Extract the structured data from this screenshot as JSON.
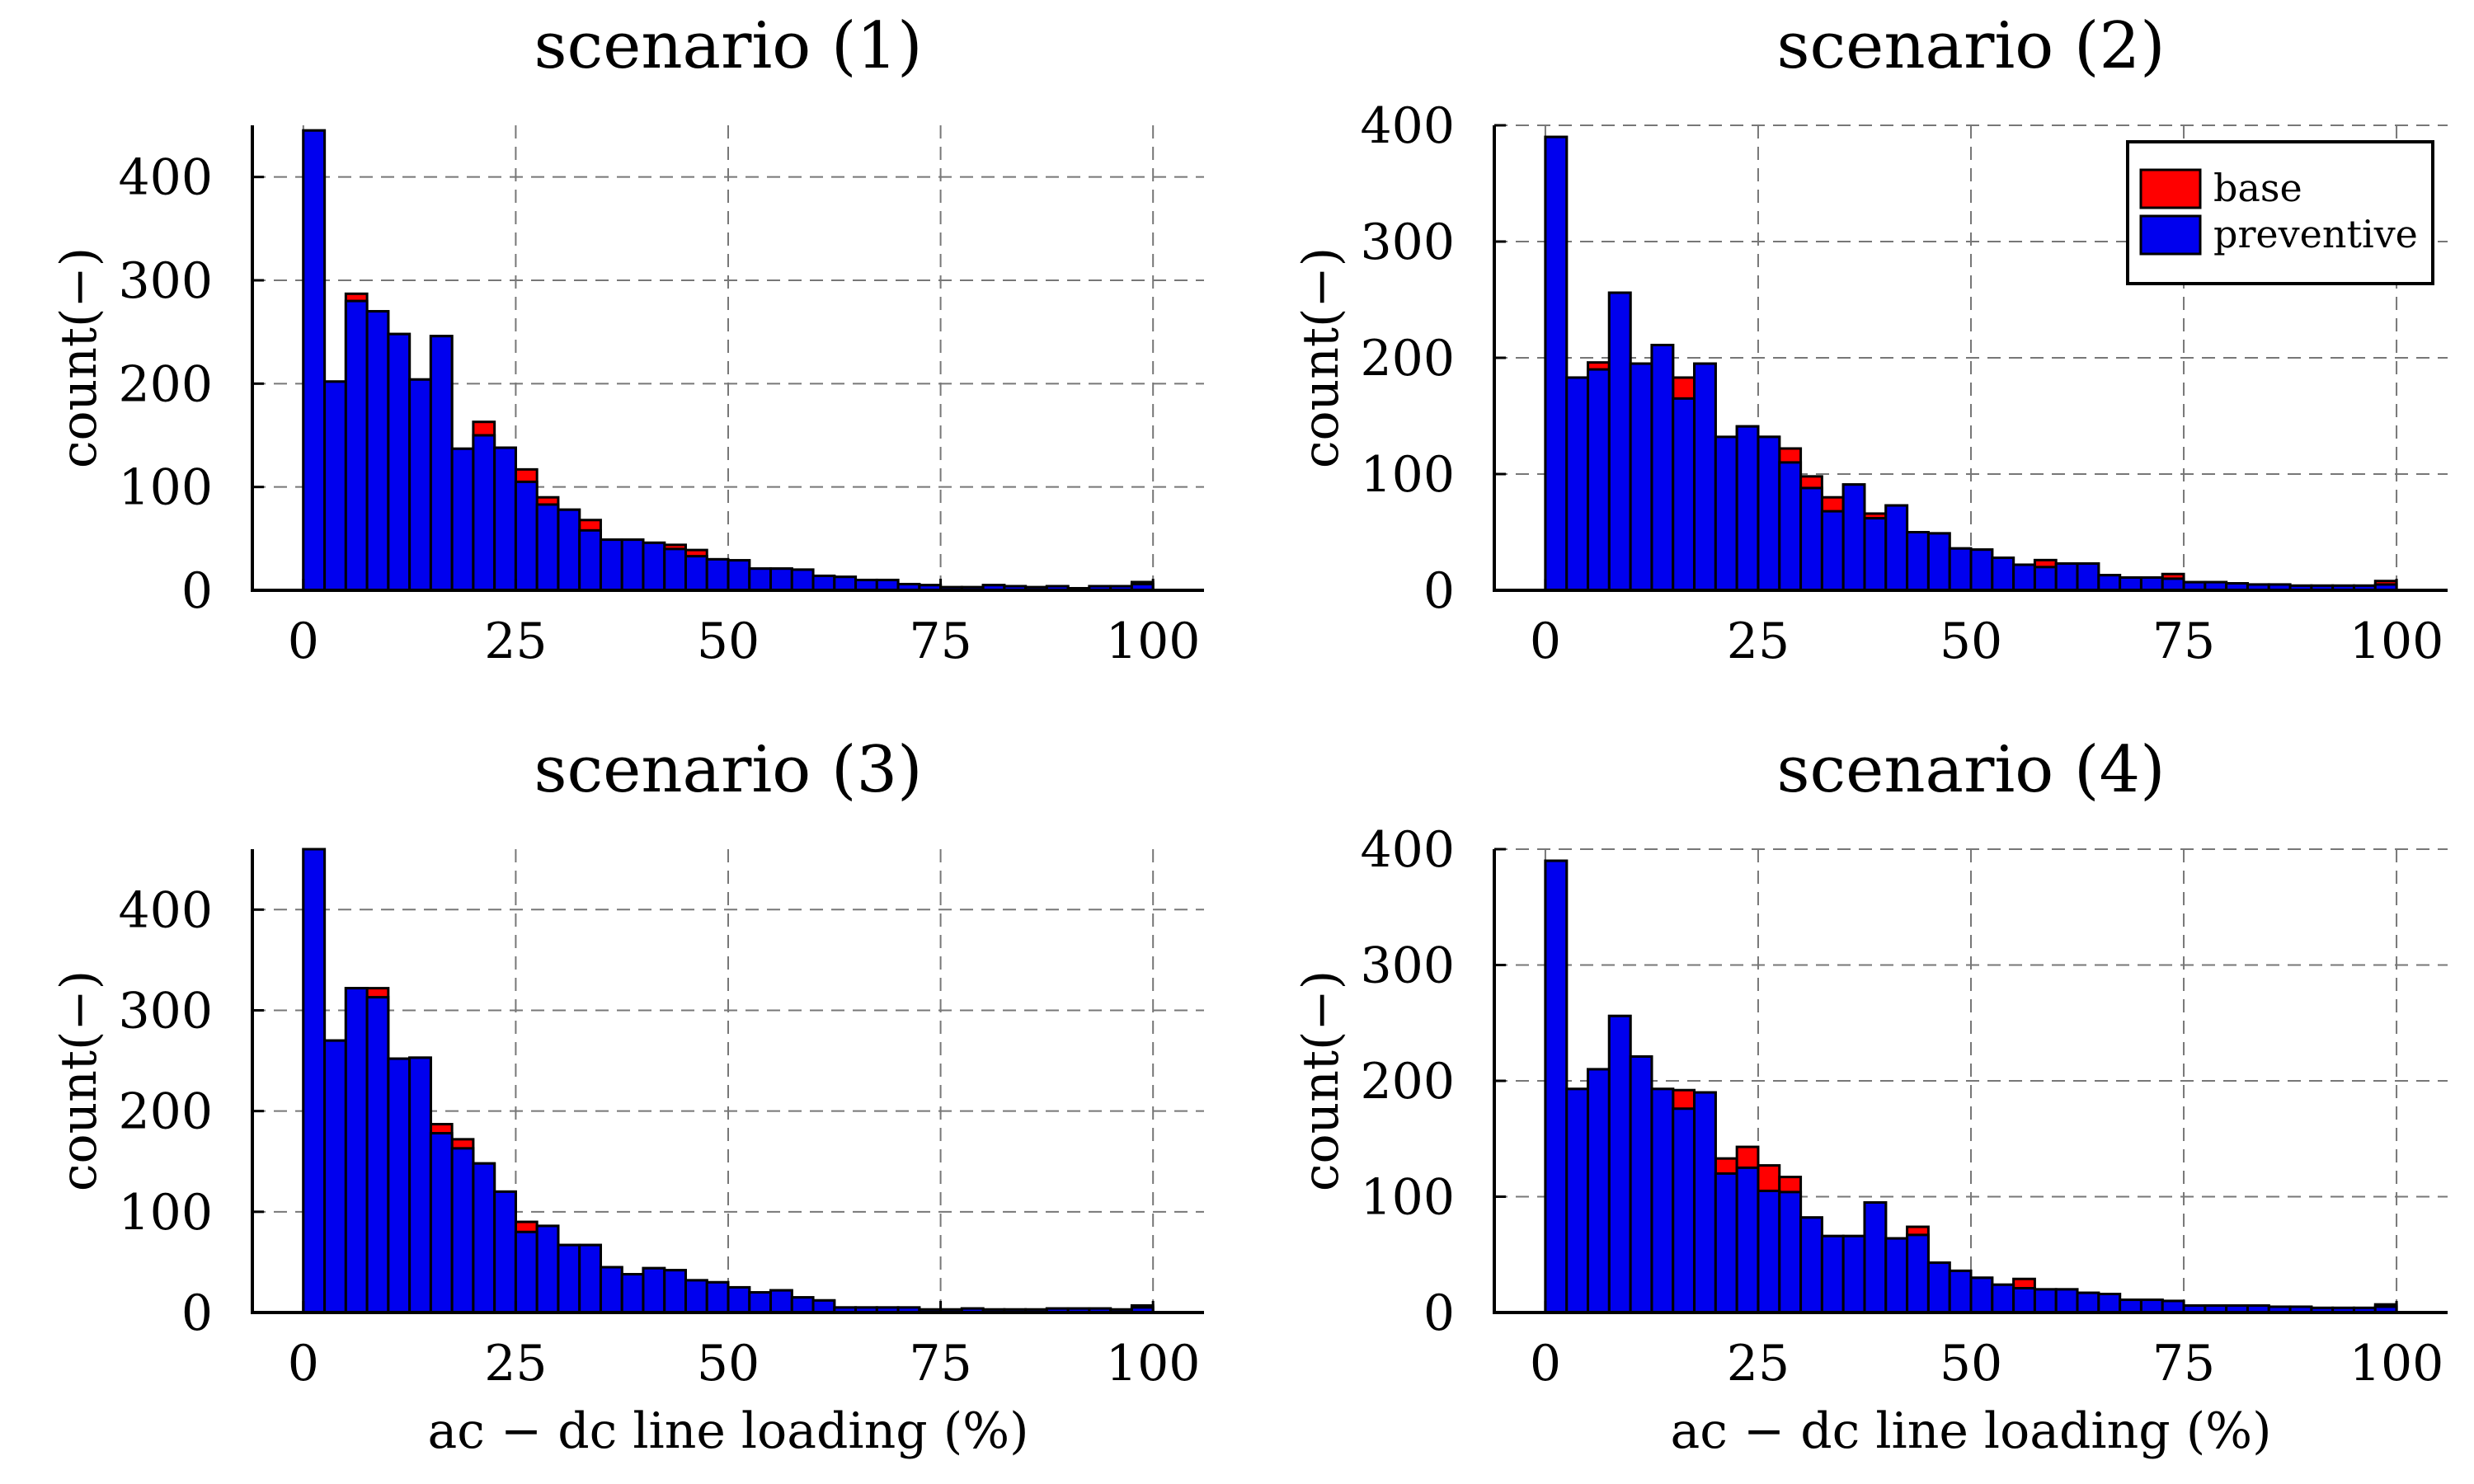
{
  "chart_data": [
    {
      "type": "bar",
      "title": "scenario (1)",
      "xlabel": "",
      "ylabel": "count(−)",
      "xlim": [
        -6,
        106
      ],
      "ylim": [
        0,
        450
      ],
      "xticks": [
        0,
        25,
        50,
        75,
        100
      ],
      "yticks": [
        0,
        100,
        200,
        300,
        400
      ],
      "grid": true,
      "legend": null,
      "bin_width": 2.5,
      "x": [
        1.25,
        3.75,
        6.25,
        8.75,
        11.25,
        13.75,
        16.25,
        18.75,
        21.25,
        23.75,
        26.25,
        28.75,
        31.25,
        33.75,
        36.25,
        38.75,
        41.25,
        43.75,
        46.25,
        48.75,
        51.25,
        53.75,
        56.25,
        58.75,
        61.25,
        63.75,
        66.25,
        68.75,
        71.25,
        73.75,
        76.25,
        78.75,
        81.25,
        83.75,
        86.25,
        88.75,
        91.25,
        93.75,
        96.25,
        98.75
      ],
      "series": [
        {
          "name": "base",
          "color": "#ff0000",
          "values": [
            445,
            202,
            287,
            270,
            248,
            204,
            246,
            137,
            163,
            138,
            117,
            90,
            78,
            68,
            49,
            49,
            46,
            44,
            39,
            30,
            29,
            21,
            21,
            20,
            14,
            13,
            10,
            10,
            6,
            5,
            3,
            3,
            5,
            4,
            3,
            4,
            2,
            4,
            4,
            8
          ]
        },
        {
          "name": "preventive",
          "color": "#0000ee",
          "values": [
            445,
            202,
            280,
            270,
            248,
            204,
            246,
            137,
            150,
            138,
            105,
            83,
            78,
            58,
            49,
            49,
            46,
            40,
            33,
            30,
            29,
            21,
            21,
            20,
            14,
            13,
            10,
            10,
            6,
            5,
            3,
            3,
            5,
            4,
            3,
            4,
            2,
            4,
            4,
            6
          ]
        }
      ]
    },
    {
      "type": "bar",
      "title": "scenario (2)",
      "xlabel": "",
      "ylabel": "count(−)",
      "xlim": [
        -6,
        106
      ],
      "ylim": [
        0,
        400
      ],
      "xticks": [
        0,
        25,
        50,
        75,
        100
      ],
      "yticks": [
        0,
        100,
        200,
        300,
        400
      ],
      "grid": true,
      "legend": {
        "position": "top-right",
        "entries": [
          "base",
          "preventive"
        ]
      },
      "bin_width": 2.5,
      "x": [
        1.25,
        3.75,
        6.25,
        8.75,
        11.25,
        13.75,
        16.25,
        18.75,
        21.25,
        23.75,
        26.25,
        28.75,
        31.25,
        33.75,
        36.25,
        38.75,
        41.25,
        43.75,
        46.25,
        48.75,
        51.25,
        53.75,
        56.25,
        58.75,
        61.25,
        63.75,
        66.25,
        68.75,
        71.25,
        73.75,
        76.25,
        78.75,
        81.25,
        83.75,
        86.25,
        88.75,
        91.25,
        93.75,
        96.25,
        98.75
      ],
      "series": [
        {
          "name": "base",
          "color": "#ff0000",
          "values": [
            390,
            183,
            196,
            256,
            195,
            211,
            183,
            195,
            126,
            141,
            132,
            122,
            98,
            80,
            91,
            66,
            73,
            50,
            49,
            36,
            35,
            28,
            22,
            26,
            23,
            23,
            13,
            11,
            11,
            14,
            7,
            7,
            6,
            5,
            5,
            4,
            4,
            4,
            4,
            8
          ]
        },
        {
          "name": "preventive",
          "color": "#0000ee",
          "values": [
            390,
            183,
            190,
            256,
            195,
            211,
            165,
            195,
            132,
            141,
            132,
            110,
            88,
            68,
            91,
            62,
            73,
            50,
            49,
            36,
            35,
            28,
            22,
            20,
            23,
            23,
            13,
            11,
            11,
            10,
            7,
            7,
            6,
            5,
            5,
            4,
            4,
            4,
            4,
            5
          ]
        }
      ]
    },
    {
      "type": "bar",
      "title": "scenario (3)",
      "xlabel": "ac − dc line loading (%)",
      "ylabel": "count(−)",
      "xlim": [
        -6,
        106
      ],
      "ylim": [
        0,
        460
      ],
      "xticks": [
        0,
        25,
        50,
        75,
        100
      ],
      "yticks": [
        0,
        100,
        200,
        300,
        400
      ],
      "grid": true,
      "legend": null,
      "bin_width": 2.5,
      "x": [
        1.25,
        3.75,
        6.25,
        8.75,
        11.25,
        13.75,
        16.25,
        18.75,
        21.25,
        23.75,
        26.25,
        28.75,
        31.25,
        33.75,
        36.25,
        38.75,
        41.25,
        43.75,
        46.25,
        48.75,
        51.25,
        53.75,
        56.25,
        58.75,
        61.25,
        63.75,
        66.25,
        68.75,
        71.25,
        73.75,
        76.25,
        78.75,
        81.25,
        83.75,
        86.25,
        88.75,
        91.25,
        93.75,
        96.25,
        98.75
      ],
      "series": [
        {
          "name": "base",
          "color": "#ff0000",
          "values": [
            460,
            270,
            322,
            322,
            252,
            253,
            187,
            172,
            148,
            120,
            90,
            86,
            67,
            67,
            45,
            38,
            44,
            42,
            32,
            30,
            25,
            20,
            22,
            15,
            12,
            5,
            5,
            5,
            5,
            3,
            3,
            4,
            3,
            3,
            3,
            4,
            4,
            4,
            3,
            7
          ]
        },
        {
          "name": "preventive",
          "color": "#0000ee",
          "values": [
            460,
            270,
            322,
            313,
            252,
            253,
            178,
            163,
            148,
            120,
            80,
            86,
            67,
            67,
            45,
            38,
            44,
            42,
            32,
            30,
            25,
            20,
            22,
            15,
            12,
            5,
            5,
            5,
            5,
            3,
            3,
            4,
            3,
            3,
            3,
            4,
            4,
            4,
            3,
            5
          ]
        }
      ]
    },
    {
      "type": "bar",
      "title": "scenario (4)",
      "xlabel": "ac − dc line loading (%)",
      "ylabel": "count(−)",
      "xlim": [
        -6,
        106
      ],
      "ylim": [
        0,
        400
      ],
      "xticks": [
        0,
        25,
        50,
        75,
        100
      ],
      "yticks": [
        0,
        100,
        200,
        300,
        400
      ],
      "grid": true,
      "legend": null,
      "bin_width": 2.5,
      "x": [
        1.25,
        3.75,
        6.25,
        8.75,
        11.25,
        13.75,
        16.25,
        18.75,
        21.25,
        23.75,
        26.25,
        28.75,
        31.25,
        33.75,
        36.25,
        38.75,
        41.25,
        43.75,
        46.25,
        48.75,
        51.25,
        53.75,
        56.25,
        58.75,
        61.25,
        63.75,
        66.25,
        68.75,
        71.25,
        73.75,
        76.25,
        78.75,
        81.25,
        83.75,
        86.25,
        88.75,
        91.25,
        93.75,
        96.25,
        98.75
      ],
      "series": [
        {
          "name": "base",
          "color": "#ff0000",
          "values": [
            390,
            193,
            210,
            256,
            221,
            193,
            192,
            190,
            133,
            143,
            127,
            117,
            82,
            66,
            66,
            95,
            64,
            74,
            43,
            36,
            30,
            24,
            29,
            20,
            20,
            17,
            16,
            11,
            11,
            10,
            6,
            6,
            6,
            6,
            5,
            5,
            4,
            4,
            4,
            7
          ]
        },
        {
          "name": "preventive",
          "color": "#0000ee",
          "values": [
            390,
            193,
            210,
            256,
            221,
            193,
            176,
            190,
            120,
            125,
            105,
            104,
            82,
            66,
            66,
            95,
            64,
            67,
            43,
            36,
            30,
            24,
            21,
            20,
            20,
            17,
            16,
            11,
            11,
            10,
            6,
            6,
            6,
            6,
            5,
            5,
            4,
            4,
            4,
            5
          ]
        }
      ]
    }
  ]
}
